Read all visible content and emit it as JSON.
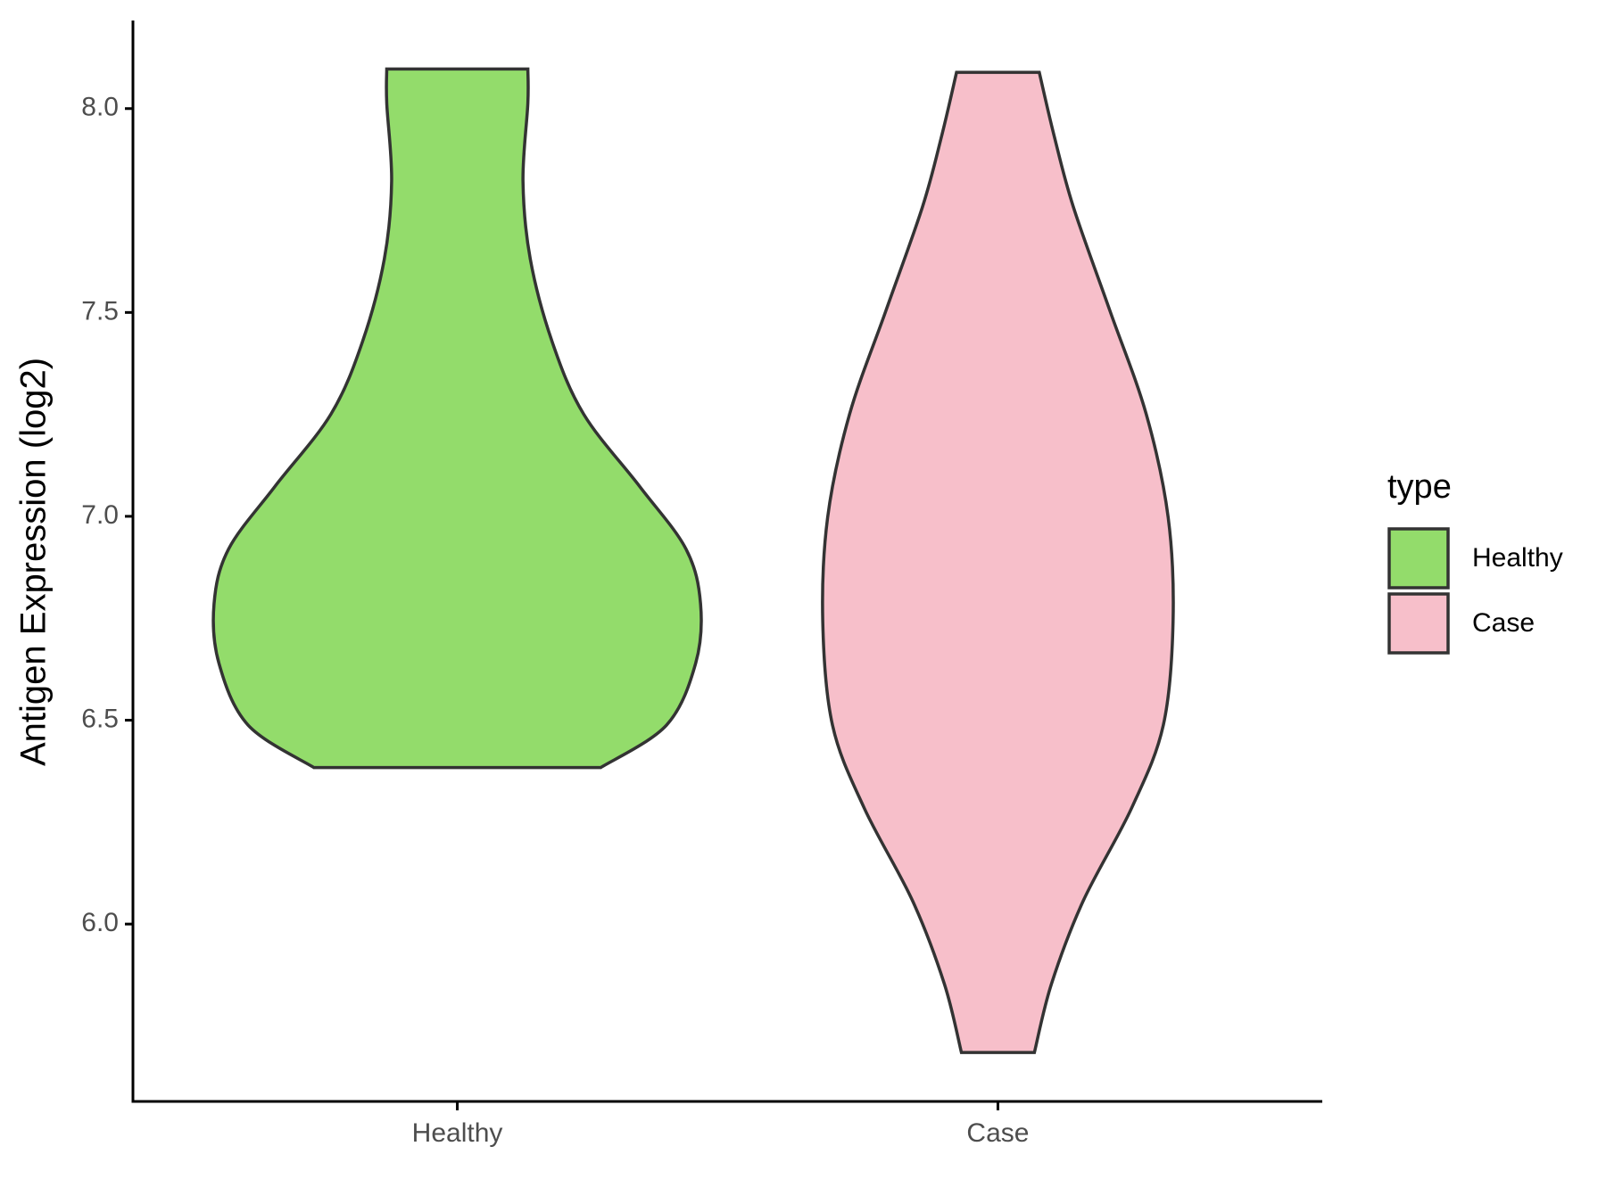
{
  "chart_data": {
    "type": "violin",
    "y_label": "Antigen Expression (log2)",
    "categories": [
      "Healthy",
      "Case"
    ],
    "legend_title": "type",
    "legend_position": "right",
    "ylim": [
      5.565,
      8.216
    ],
    "yticks": [
      {
        "value": 6,
        "label": "6.0"
      },
      {
        "value": 6.5,
        "label": "6.5"
      },
      {
        "value": 7,
        "label": "7.0"
      },
      {
        "value": 7.5,
        "label": "7.5"
      },
      {
        "value": 8,
        "label": "8.0"
      }
    ],
    "series": [
      {
        "name": "Healthy",
        "color": "#93dc6b",
        "y": [
          6.384,
          6.488,
          6.64,
          6.785,
          6.92,
          7.073,
          7.25,
          7.428,
          7.631,
          7.822,
          8.013,
          8.097
        ],
        "density": [
          0.59,
          0.86,
          0.98,
          1.0,
          0.94,
          0.75,
          0.52,
          0.39,
          0.3,
          0.27,
          0.29,
          0.29
        ]
      },
      {
        "name": "Case",
        "color": "#f7bfca",
        "y": [
          5.685,
          5.853,
          6.056,
          6.285,
          6.488,
          6.742,
          6.997,
          7.25,
          7.505,
          7.759,
          7.936,
          8.089
        ],
        "density": [
          0.15,
          0.22,
          0.35,
          0.55,
          0.68,
          0.72,
          0.7,
          0.61,
          0.46,
          0.31,
          0.23,
          0.17
        ]
      }
    ]
  }
}
